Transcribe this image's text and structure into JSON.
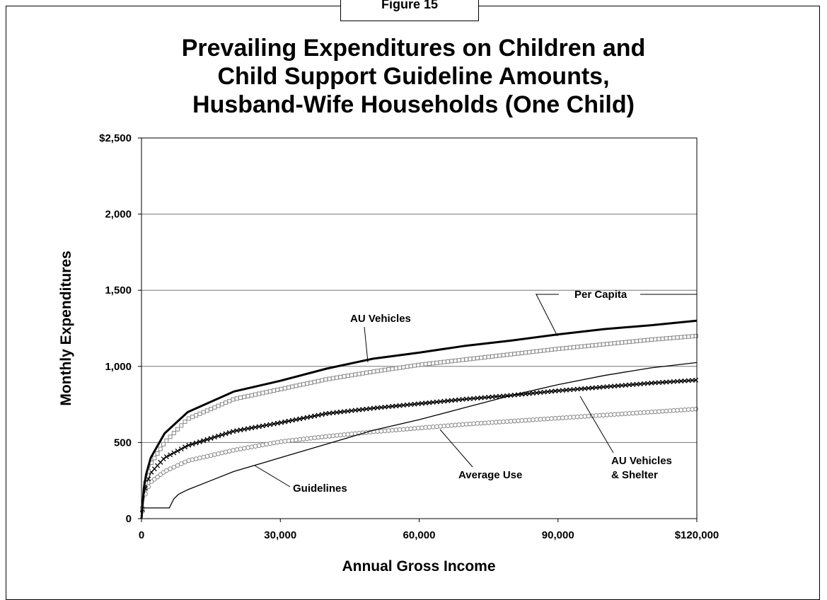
{
  "figure_label": "Figure 15",
  "chart_data": {
    "type": "line",
    "title": [
      "Prevailing Expenditures on Children and",
      "Child Support Guideline Amounts,",
      "Husband-Wife Households (One Child)"
    ],
    "xlabel": "Annual Gross Income",
    "ylabel": "Monthly Expenditures",
    "xlim": [
      0,
      120000
    ],
    "ylim": [
      0,
      2500
    ],
    "x_ticks": [
      0,
      30000,
      60000,
      90000,
      120000
    ],
    "x_tick_labels": [
      "0",
      "30,000",
      "60,000",
      "90,000",
      "$120,000"
    ],
    "y_ticks": [
      0,
      500,
      1000,
      1500,
      2000,
      2500
    ],
    "y_tick_labels": [
      "0",
      "500",
      "1,000",
      "1,500",
      "2,000",
      "$2,500"
    ],
    "grid": "horizontal",
    "series": [
      {
        "name": "Per Capita",
        "marker": "none",
        "color": "#000000",
        "x": [
          0,
          500,
          1000,
          2000,
          5000,
          10000,
          20000,
          30000,
          40000,
          50000,
          60000,
          70000,
          80000,
          90000,
          100000,
          110000,
          120000
        ],
        "y": [
          0,
          200,
          290,
          400,
          560,
          700,
          835,
          905,
          985,
          1050,
          1090,
          1135,
          1170,
          1210,
          1245,
          1270,
          1300
        ]
      },
      {
        "name": "AU Vehicles",
        "marker": "square",
        "color": "#888888",
        "x": [
          0,
          500,
          1000,
          2000,
          5000,
          10000,
          20000,
          30000,
          40000,
          50000,
          60000,
          70000,
          80000,
          90000,
          100000,
          110000,
          120000
        ],
        "y": [
          0,
          170,
          260,
          360,
          500,
          655,
          785,
          850,
          915,
          965,
          1010,
          1045,
          1080,
          1115,
          1145,
          1175,
          1200
        ]
      },
      {
        "name": "AU Vehicles & Shelter",
        "marker": "cross",
        "color": "#000000",
        "x": [
          0,
          500,
          1000,
          2000,
          5000,
          10000,
          20000,
          30000,
          40000,
          50000,
          60000,
          70000,
          80000,
          90000,
          100000,
          110000,
          120000
        ],
        "y": [
          0,
          150,
          220,
          300,
          400,
          480,
          575,
          630,
          690,
          725,
          755,
          785,
          810,
          840,
          865,
          890,
          910
        ]
      },
      {
        "name": "Average Use",
        "marker": "circle",
        "color": "#888888",
        "x": [
          0,
          500,
          1000,
          2000,
          5000,
          10000,
          20000,
          30000,
          40000,
          50000,
          60000,
          70000,
          80000,
          90000,
          100000,
          110000,
          120000
        ],
        "y": [
          0,
          120,
          180,
          240,
          310,
          380,
          450,
          505,
          540,
          570,
          595,
          620,
          640,
          660,
          680,
          700,
          720
        ]
      },
      {
        "name": "Guidelines",
        "marker": "none",
        "color": "#000000",
        "x": [
          0,
          100,
          500,
          6000,
          6500,
          7000,
          8000,
          10000,
          15000,
          20000,
          30000,
          40000,
          50000,
          60000,
          70000,
          80000,
          90000,
          100000,
          110000,
          120000
        ],
        "y": [
          0,
          70,
          70,
          70,
          100,
          130,
          160,
          190,
          250,
          310,
          400,
          490,
          580,
          650,
          730,
          810,
          880,
          940,
          990,
          1025
        ]
      }
    ],
    "annotations": [
      {
        "text": "Per Capita"
      },
      {
        "text": "AU Vehicles"
      },
      {
        "text": "AU Vehicles"
      },
      {
        "text": "& Shelter"
      },
      {
        "text": "Average Use"
      },
      {
        "text": "Guidelines"
      }
    ]
  }
}
